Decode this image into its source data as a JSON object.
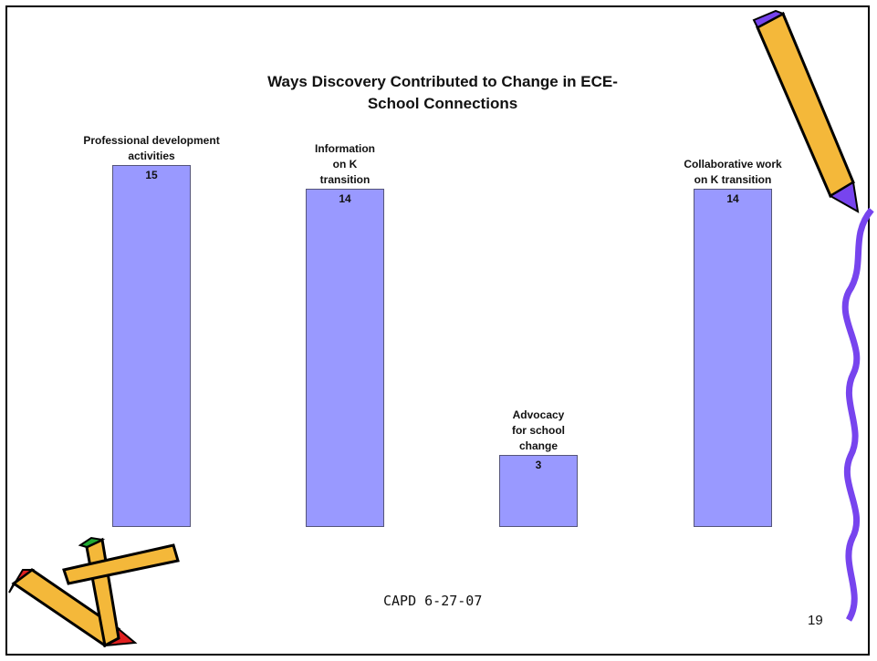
{
  "chart_data": {
    "type": "bar",
    "title": "Ways Discovery Contributed to Change in ECE-School Connections",
    "categories": [
      "Professional development activities",
      "Information on K transition",
      "Advocacy for school change",
      "Collaborative work on K transition"
    ],
    "values": [
      15,
      14,
      3,
      14
    ],
    "color": "#9999ff",
    "footer": "CAPD 6-27-07",
    "page_number": "19"
  }
}
